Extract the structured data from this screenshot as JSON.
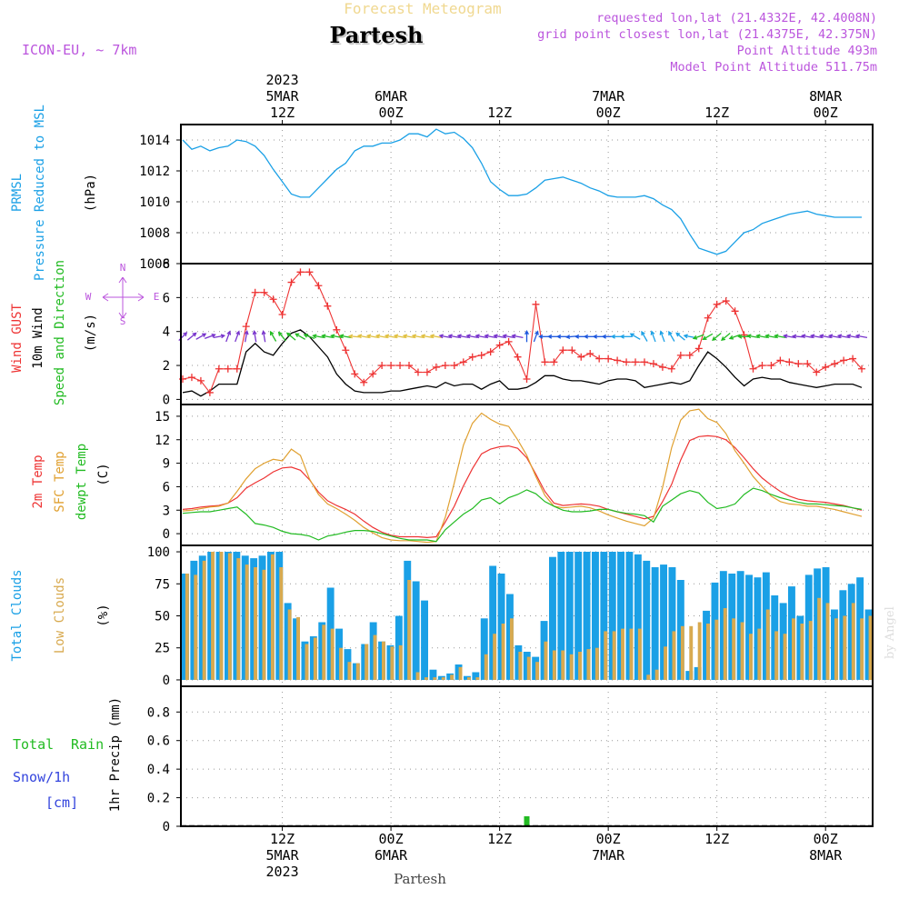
{
  "header": {
    "subtitle": "Forecast Meteogram",
    "station": "Partesh",
    "model": "ICON-EU, ~ 7km",
    "requested": "requested lon,lat (21.4332E, 42.4008N)",
    "closest": "grid point closest lon,lat (21.4375E, 42.375N)",
    "point_alt": "Point Altitude 493m",
    "model_alt": "Model Point Altitude 511.75m",
    "footer_station": "Partesh",
    "watermark": "by Angel"
  },
  "time_axis": {
    "hours_per_step": 1,
    "start_label": "2023-03-05 01Z",
    "major_ticks": [
      {
        "hour": 11,
        "top": [
          "2023",
          "5MAR",
          "12Z"
        ],
        "bottom": [
          "12Z",
          "5MAR",
          "2023"
        ]
      },
      {
        "hour": 23,
        "top": [
          "6MAR",
          "00Z"
        ],
        "bottom": [
          "00Z",
          "6MAR"
        ]
      },
      {
        "hour": 35,
        "top": [
          "12Z"
        ],
        "bottom": [
          "12Z"
        ]
      },
      {
        "hour": 47,
        "top": [
          "7MAR",
          "00Z"
        ],
        "bottom": [
          "00Z",
          "7MAR"
        ]
      },
      {
        "hour": 59,
        "top": [
          "12Z"
        ],
        "bottom": [
          "12Z"
        ]
      },
      {
        "hour": 71,
        "top": [
          "8MAR",
          "00Z"
        ],
        "bottom": [
          "00Z",
          "8MAR"
        ]
      }
    ],
    "x_range": [
      0,
      76
    ]
  },
  "panels": {
    "pressure": {
      "labels": [
        {
          "text": "PRMSL",
          "color": "#1aa0e6"
        },
        {
          "text": "Pressure Reduced to MSL",
          "color": "#1aa0e6"
        },
        {
          "text": "(hPa)",
          "color": "#000000"
        }
      ]
    },
    "wind": {
      "labels": [
        {
          "text": "Wind GUST",
          "color": "#ee3333"
        },
        {
          "text": "10m Wind",
          "color": "#000000"
        },
        {
          "text": "Speed and Direction",
          "color": "#22bb22"
        },
        {
          "text": "(m/s)",
          "color": "#000000"
        }
      ],
      "compass": {
        "n": "N",
        "s": "S",
        "w": "W",
        "e": "E"
      }
    },
    "temp": {
      "labels": [
        {
          "text": "2m Temp",
          "color": "#ee3333"
        },
        {
          "text": "SFC Temp",
          "color": "#e0a030"
        },
        {
          "text": "dewpt Temp",
          "color": "#22bb22"
        },
        {
          "text": "(C)",
          "color": "#000000"
        }
      ]
    },
    "clouds": {
      "labels": [
        {
          "text": "Total Clouds",
          "color": "#1aa0e6"
        },
        {
          "text": "Low Clouds",
          "color": "#d8aa50"
        },
        {
          "text": "(%)",
          "color": "#000000"
        }
      ]
    },
    "precip": {
      "labels": [
        {
          "text": "Total",
          "color": "#22bb22"
        },
        {
          "text": "Rain",
          "color": "#22bb22"
        },
        {
          "text": "Snow/1h",
          "color": "#3344dd"
        },
        {
          "text": "[cm]",
          "color": "#3344dd"
        },
        {
          "text": "1hr Precip (mm)",
          "color": "#000000"
        }
      ]
    }
  },
  "chart_data": [
    {
      "type": "line",
      "title": "PRMSL Pressure Reduced to MSL",
      "ylabel": "hPa",
      "ylim": [
        1006,
        1015
      ],
      "yticks": [
        1006,
        1008,
        1010,
        1012,
        1014
      ],
      "series": [
        {
          "name": "PRMSL",
          "color": "#1aa0e6",
          "values": [
            1014.0,
            1013.4,
            1013.6,
            1013.3,
            1013.5,
            1013.6,
            1014.0,
            1013.9,
            1013.6,
            1013.0,
            1012.1,
            1011.3,
            1010.5,
            1010.3,
            1010.3,
            1010.9,
            1011.5,
            1012.1,
            1012.5,
            1013.3,
            1013.6,
            1013.6,
            1013.8,
            1013.8,
            1014.0,
            1014.4,
            1014.4,
            1014.2,
            1014.7,
            1014.4,
            1014.5,
            1014.1,
            1013.5,
            1012.5,
            1011.3,
            1010.8,
            1010.4,
            1010.4,
            1010.5,
            1010.9,
            1011.4,
            1011.5,
            1011.6,
            1011.4,
            1011.2,
            1010.9,
            1010.7,
            1010.4,
            1010.3,
            1010.3,
            1010.3,
            1010.4,
            1010.2,
            1009.8,
            1009.5,
            1008.9,
            1007.9,
            1007.0,
            1006.8,
            1006.6,
            1006.8,
            1007.4,
            1008.0,
            1008.2,
            1008.6,
            1008.8,
            1009.0,
            1009.2,
            1009.3,
            1009.4,
            1009.2,
            1009.1,
            1009.0,
            1009.0,
            1009.0,
            1009.0
          ]
        }
      ]
    },
    {
      "type": "line",
      "title": "Wind GUST / 10m Wind Speed and Direction",
      "ylabel": "m/s",
      "ylim": [
        -0.3,
        8
      ],
      "yticks": [
        0,
        2,
        4,
        6,
        8
      ],
      "series": [
        {
          "name": "Wind GUST",
          "color": "#ee3333",
          "marker": "+",
          "values": [
            1.2,
            1.3,
            1.1,
            0.4,
            1.8,
            1.8,
            1.8,
            4.3,
            6.3,
            6.3,
            5.9,
            5.0,
            6.9,
            7.5,
            7.5,
            6.7,
            5.5,
            4.1,
            2.9,
            1.5,
            1.0,
            1.5,
            2.0,
            2.0,
            2.0,
            2.0,
            1.6,
            1.6,
            1.9,
            2.0,
            2.0,
            2.2,
            2.5,
            2.6,
            2.8,
            3.2,
            3.4,
            2.5,
            1.2,
            5.6,
            2.2,
            2.2,
            2.9,
            2.9,
            2.5,
            2.7,
            2.4,
            2.4,
            2.3,
            2.2,
            2.2,
            2.2,
            2.1,
            1.9,
            1.8,
            2.6,
            2.6,
            3.0,
            4.8,
            5.6,
            5.8,
            5.2,
            3.8,
            1.8,
            2.0,
            2.0,
            2.3,
            2.2,
            2.1,
            2.1,
            1.6,
            1.9,
            2.1,
            2.3,
            2.4,
            1.8
          ]
        },
        {
          "name": "10m Wind",
          "color": "#000000",
          "values": [
            0.4,
            0.5,
            0.2,
            0.5,
            0.9,
            0.9,
            0.9,
            2.8,
            3.3,
            2.8,
            2.6,
            3.3,
            3.9,
            4.1,
            3.7,
            3.1,
            2.5,
            1.5,
            0.9,
            0.5,
            0.4,
            0.4,
            0.4,
            0.5,
            0.5,
            0.6,
            0.7,
            0.8,
            0.7,
            1.0,
            0.8,
            0.9,
            0.9,
            0.6,
            0.9,
            1.1,
            0.6,
            0.6,
            0.7,
            1.0,
            1.4,
            1.4,
            1.2,
            1.1,
            1.1,
            1.0,
            0.9,
            1.1,
            1.2,
            1.2,
            1.1,
            0.7,
            0.8,
            0.9,
            1.0,
            0.9,
            1.1,
            2.0,
            2.8,
            2.4,
            1.9,
            1.3,
            0.8,
            1.2,
            1.3,
            1.2,
            1.2,
            1.0,
            0.9,
            0.8,
            0.7,
            0.8,
            0.9,
            0.9,
            0.9,
            0.7
          ]
        }
      ],
      "wind_arrows": {
        "level": 3.7,
        "direction_deg": [
          225,
          230,
          240,
          250,
          260,
          200,
          200,
          190,
          170,
          170,
          150,
          140,
          130,
          120,
          110,
          100,
          100,
          100,
          100,
          95,
          100,
          100,
          100,
          100,
          100,
          100,
          100,
          100,
          100,
          100,
          100,
          100,
          100,
          100,
          100,
          100,
          100,
          100,
          180,
          200,
          90,
          90,
          90,
          85,
          90,
          90,
          90,
          90,
          90,
          90,
          120,
          150,
          160,
          160,
          150,
          130,
          100,
          70,
          60,
          50,
          50,
          70,
          90,
          100,
          100,
          100,
          100,
          100,
          95,
          100,
          100,
          100,
          100,
          100,
          100,
          100
        ],
        "colors_by_segment": [
          "#7733cc",
          "#22bb22",
          "#e0c040",
          "#7733cc",
          "#1a55dd",
          "#1aa0e6",
          "#22bb22",
          "#7733cc"
        ]
      }
    },
    {
      "type": "line",
      "title": "2m Temp / SFC Temp / dewpt Temp",
      "ylabel": "C",
      "ylim": [
        -1.5,
        16.5
      ],
      "yticks": [
        0,
        3,
        6,
        9,
        12,
        15
      ],
      "series": [
        {
          "name": "2m Temp",
          "color": "#ee3333",
          "values": [
            3.1,
            3.2,
            3.4,
            3.5,
            3.6,
            3.9,
            4.6,
            5.8,
            6.5,
            7.1,
            7.9,
            8.4,
            8.5,
            8.1,
            6.9,
            5.3,
            4.2,
            3.6,
            3.1,
            2.5,
            1.6,
            0.8,
            0.2,
            -0.2,
            -0.4,
            -0.4,
            -0.4,
            -0.5,
            -0.4,
            1.5,
            3.5,
            6.1,
            8.3,
            10.2,
            10.8,
            11.1,
            11.2,
            10.9,
            9.7,
            7.6,
            5.4,
            3.9,
            3.6,
            3.7,
            3.8,
            3.7,
            3.5,
            3.1,
            2.8,
            2.5,
            2.2,
            1.9,
            2.2,
            4.1,
            6.3,
            9.4,
            11.9,
            12.4,
            12.5,
            12.4,
            12.0,
            11.0,
            9.7,
            8.3,
            7.1,
            6.2,
            5.4,
            4.8,
            4.4,
            4.2,
            4.1,
            4.0,
            3.8,
            3.6,
            3.3,
            3.0
          ]
        },
        {
          "name": "SFC Temp",
          "color": "#e0a030",
          "values": [
            2.9,
            3.0,
            3.2,
            3.4,
            3.5,
            3.9,
            5.4,
            7.0,
            8.3,
            9.0,
            9.5,
            9.3,
            10.8,
            10.0,
            7.0,
            5.0,
            3.8,
            3.2,
            2.5,
            1.7,
            0.8,
            0.1,
            -0.5,
            -0.8,
            -0.9,
            -0.9,
            -1.0,
            -1.1,
            -1.0,
            2.1,
            6.5,
            11.3,
            14.1,
            15.4,
            14.6,
            14.0,
            13.7,
            12.0,
            10.0,
            7.3,
            4.9,
            3.5,
            3.3,
            3.4,
            3.5,
            3.3,
            2.9,
            2.4,
            2.0,
            1.6,
            1.3,
            1.0,
            2.0,
            5.9,
            11.0,
            14.5,
            15.7,
            15.9,
            14.7,
            14.2,
            12.8,
            10.6,
            9.0,
            7.3,
            6.0,
            4.8,
            4.1,
            3.8,
            3.7,
            3.5,
            3.5,
            3.3,
            3.1,
            2.8,
            2.5,
            2.2
          ]
        },
        {
          "name": "dewpt Temp",
          "color": "#22bb22",
          "values": [
            2.6,
            2.7,
            2.8,
            2.8,
            3.0,
            3.2,
            3.4,
            2.5,
            1.3,
            1.1,
            0.8,
            0.3,
            0.0,
            -0.1,
            -0.3,
            -0.8,
            -0.3,
            -0.1,
            0.2,
            0.4,
            0.4,
            0.3,
            0.0,
            -0.3,
            -0.6,
            -0.8,
            -0.8,
            -0.8,
            -1.0,
            0.5,
            1.5,
            2.5,
            3.2,
            4.3,
            4.6,
            3.8,
            4.6,
            5.0,
            5.6,
            5.1,
            4.1,
            3.5,
            3.0,
            2.8,
            2.8,
            2.9,
            3.1,
            3.1,
            2.8,
            2.6,
            2.5,
            2.3,
            1.5,
            3.5,
            4.3,
            5.1,
            5.5,
            5.2,
            4.0,
            3.2,
            3.4,
            3.8,
            5.0,
            5.8,
            5.5,
            5.0,
            4.6,
            4.3,
            4.0,
            3.8,
            3.8,
            3.7,
            3.6,
            3.5,
            3.3,
            3.1
          ]
        }
      ]
    },
    {
      "type": "bar",
      "title": "Total Clouds / Low Clouds",
      "ylabel": "%",
      "ylim": [
        -5,
        105
      ],
      "yticks": [
        0,
        25,
        50,
        75,
        100
      ],
      "series": [
        {
          "name": "Total Clouds",
          "color": "#1aa0e6",
          "values": [
            83,
            93,
            97,
            100,
            100,
            100,
            100,
            97,
            95,
            97,
            100,
            100,
            60,
            48,
            30,
            34,
            45,
            72,
            40,
            24,
            13,
            28,
            45,
            30,
            27,
            50,
            93,
            77,
            62,
            8,
            3,
            5,
            12,
            3,
            6,
            48,
            89,
            83,
            67,
            27,
            22,
            18,
            46,
            96,
            100,
            100,
            100,
            100,
            100,
            100,
            100,
            100,
            100,
            98,
            93,
            88,
            90,
            88,
            78,
            7,
            10,
            54,
            76,
            85,
            83,
            85,
            82,
            80,
            84,
            66,
            60,
            73,
            50,
            82,
            87,
            88,
            55,
            70,
            75,
            80,
            55
          ]
        },
        {
          "name": "Low Clouds",
          "color": "#d8aa50",
          "values": [
            83,
            82,
            93,
            100,
            100,
            99,
            95,
            90,
            88,
            86,
            98,
            88,
            55,
            49,
            28,
            33,
            43,
            40,
            25,
            14,
            13,
            28,
            35,
            30,
            26,
            27,
            78,
            6,
            2,
            2,
            2,
            4,
            10,
            2,
            2,
            20,
            36,
            44,
            48,
            22,
            18,
            14,
            30,
            23,
            23,
            20,
            22,
            24,
            25,
            38,
            38,
            40,
            40,
            40,
            4,
            8,
            26,
            38,
            42,
            42,
            45,
            44,
            47,
            56,
            48,
            45,
            36,
            40,
            55,
            38,
            36,
            48,
            44,
            46,
            64,
            60,
            48,
            50,
            60,
            48,
            50
          ]
        }
      ]
    },
    {
      "type": "bar",
      "title": "Total Rain / Snow 1hr Precip",
      "ylabel": "1hr Precip (mm)",
      "ylim": [
        0,
        0.98
      ],
      "yticks": [
        0,
        0.2,
        0.4,
        0.6,
        0.8
      ],
      "series": [
        {
          "name": "Total Rain",
          "color": "#22bb22",
          "values": [
            0,
            0.003,
            0,
            0,
            0,
            0.003,
            0,
            0,
            0,
            0,
            0,
            0,
            0,
            0,
            0,
            0,
            0,
            0,
            0,
            0,
            0,
            0,
            0,
            0,
            0,
            0,
            0,
            0,
            0,
            0,
            0,
            0,
            0,
            0,
            0,
            0,
            0,
            0,
            0.07,
            0,
            0,
            0,
            0,
            0,
            0,
            0,
            0,
            0,
            0,
            0,
            0,
            0,
            0,
            0,
            0,
            0,
            0,
            0,
            0,
            0,
            0,
            0,
            0,
            0.003,
            0,
            0,
            0,
            0,
            0,
            0,
            0,
            0,
            0,
            0,
            0,
            0
          ]
        },
        {
          "name": "Snow/1h",
          "color": "#3344dd",
          "values": []
        }
      ]
    }
  ]
}
